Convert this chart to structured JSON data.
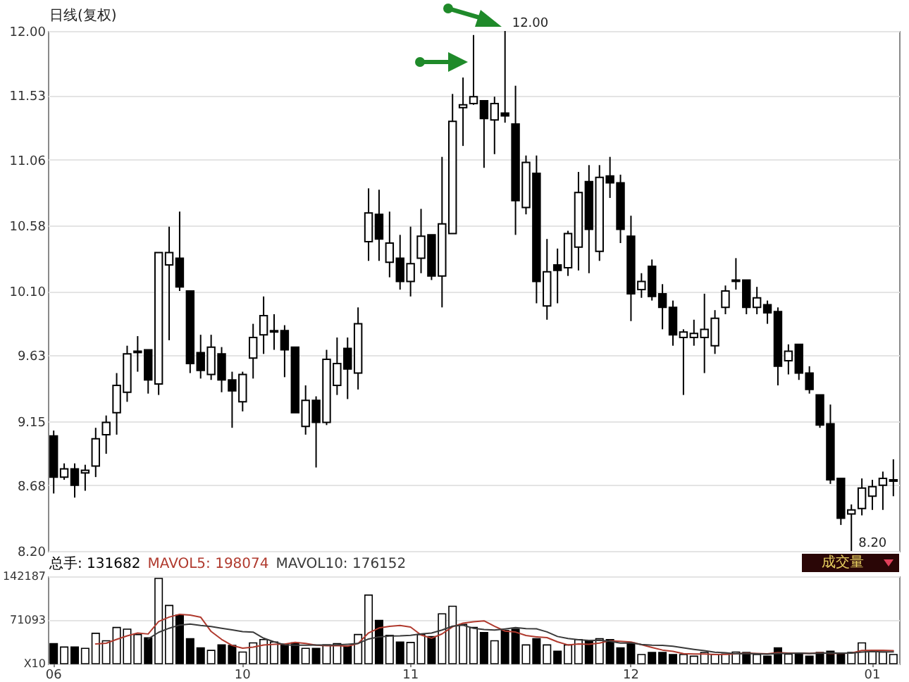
{
  "chart_data": [
    {
      "type": "candlestick",
      "title": "日线(复权)",
      "color": "#000000",
      "categories": [
        "06",
        null,
        null,
        null,
        null,
        null,
        null,
        null,
        null,
        null,
        null,
        null,
        null,
        null,
        null,
        null,
        null,
        null,
        "10",
        null,
        null,
        null,
        null,
        null,
        null,
        null,
        null,
        null,
        null,
        null,
        null,
        null,
        null,
        null,
        "11",
        null,
        null,
        null,
        null,
        null,
        null,
        null,
        null,
        null,
        null,
        null,
        null,
        null,
        null,
        null,
        null,
        null,
        null,
        null,
        null,
        "12",
        null,
        null,
        null,
        null,
        null,
        null,
        null,
        null,
        null,
        null,
        null,
        null,
        null,
        null,
        null,
        null,
        null,
        null,
        null,
        null,
        null,
        null,
        "01",
        null,
        null
      ],
      "ohlc": [
        [
          9.04,
          9.08,
          8.62,
          8.74
        ],
        [
          8.74,
          8.84,
          8.72,
          8.8
        ],
        [
          8.8,
          8.84,
          8.59,
          8.68
        ],
        [
          8.77,
          8.83,
          8.64,
          8.79
        ],
        [
          8.82,
          9.1,
          8.74,
          9.02
        ],
        [
          9.05,
          9.19,
          8.91,
          9.14
        ],
        [
          9.21,
          9.5,
          9.05,
          9.41
        ],
        [
          9.36,
          9.7,
          9.29,
          9.64
        ],
        [
          9.65,
          9.77,
          9.51,
          9.66
        ],
        [
          9.67,
          9.67,
          9.35,
          9.45
        ],
        [
          9.42,
          10.38,
          9.34,
          10.38
        ],
        [
          10.29,
          10.57,
          9.74,
          10.38
        ],
        [
          10.34,
          10.68,
          10.1,
          10.13
        ],
        [
          10.1,
          10.1,
          9.5,
          9.57
        ],
        [
          9.65,
          9.78,
          9.46,
          9.52
        ],
        [
          9.49,
          9.78,
          9.45,
          9.69
        ],
        [
          9.64,
          9.69,
          9.36,
          9.45
        ],
        [
          9.45,
          9.51,
          9.1,
          9.37
        ],
        [
          9.29,
          9.51,
          9.22,
          9.49
        ],
        [
          9.61,
          9.86,
          9.46,
          9.76
        ],
        [
          9.78,
          10.06,
          9.64,
          9.92
        ],
        [
          9.8,
          9.93,
          9.67,
          9.81
        ],
        [
          9.81,
          9.85,
          9.47,
          9.67
        ],
        [
          9.69,
          9.69,
          9.21,
          9.21
        ],
        [
          9.11,
          9.41,
          9.05,
          9.3
        ],
        [
          9.3,
          9.33,
          8.81,
          9.14
        ],
        [
          9.14,
          9.67,
          9.12,
          9.6
        ],
        [
          9.41,
          9.76,
          9.34,
          9.57
        ],
        [
          9.68,
          9.76,
          9.31,
          9.53
        ],
        [
          9.5,
          9.98,
          9.38,
          9.86
        ],
        [
          10.46,
          10.85,
          10.32,
          10.67
        ],
        [
          10.66,
          10.84,
          10.32,
          10.48
        ],
        [
          10.31,
          10.68,
          10.2,
          10.45
        ],
        [
          10.34,
          10.51,
          10.11,
          10.17
        ],
        [
          10.17,
          10.57,
          10.06,
          10.3
        ],
        [
          10.34,
          10.7,
          10.23,
          10.5
        ],
        [
          10.51,
          10.51,
          10.18,
          10.21
        ],
        [
          10.21,
          11.08,
          9.98,
          10.59
        ],
        [
          10.52,
          11.54,
          10.52,
          11.34
        ],
        [
          11.44,
          11.66,
          11.16,
          11.46
        ],
        [
          11.47,
          11.97,
          11.46,
          11.52
        ],
        [
          11.49,
          11.49,
          11.0,
          11.36
        ],
        [
          11.35,
          11.52,
          11.1,
          11.47
        ],
        [
          11.4,
          12.0,
          11.33,
          11.38
        ],
        [
          11.32,
          11.6,
          10.51,
          10.76
        ],
        [
          10.71,
          11.09,
          10.66,
          11.04
        ],
        [
          10.96,
          11.09,
          10.01,
          10.17
        ],
        [
          9.99,
          10.48,
          9.89,
          10.24
        ],
        [
          10.29,
          10.41,
          10.01,
          10.25
        ],
        [
          10.27,
          10.54,
          10.21,
          10.52
        ],
        [
          10.42,
          10.97,
          10.25,
          10.82
        ],
        [
          10.9,
          11.02,
          10.23,
          10.55
        ],
        [
          10.39,
          11.02,
          10.32,
          10.93
        ],
        [
          10.94,
          11.08,
          10.78,
          10.89
        ],
        [
          10.89,
          10.95,
          10.45,
          10.55
        ],
        [
          10.5,
          10.65,
          9.88,
          10.08
        ],
        [
          10.11,
          10.23,
          10.05,
          10.17
        ],
        [
          10.28,
          10.33,
          10.03,
          10.06
        ],
        [
          10.08,
          10.15,
          9.82,
          9.98
        ],
        [
          9.98,
          10.03,
          9.7,
          9.78
        ],
        [
          9.76,
          9.82,
          9.34,
          9.8
        ],
        [
          9.76,
          9.89,
          9.7,
          9.79
        ],
        [
          9.76,
          10.08,
          9.5,
          9.82
        ],
        [
          9.7,
          9.96,
          9.64,
          9.9
        ],
        [
          9.98,
          10.14,
          9.93,
          10.1
        ],
        [
          10.17,
          10.34,
          10.11,
          10.18
        ],
        [
          10.18,
          10.18,
          9.93,
          9.98
        ],
        [
          9.98,
          10.13,
          9.93,
          10.05
        ],
        [
          10.0,
          10.03,
          9.86,
          9.94
        ],
        [
          9.95,
          9.98,
          9.41,
          9.55
        ],
        [
          9.59,
          9.71,
          9.49,
          9.66
        ],
        [
          9.71,
          9.71,
          9.45,
          9.5
        ],
        [
          9.5,
          9.55,
          9.35,
          9.38
        ],
        [
          9.34,
          9.34,
          9.1,
          9.12
        ],
        [
          9.13,
          9.27,
          8.69,
          8.72
        ],
        [
          8.73,
          8.73,
          8.39,
          8.44
        ],
        [
          8.47,
          8.54,
          8.2,
          8.5
        ],
        [
          8.51,
          8.73,
          8.46,
          8.66
        ],
        [
          8.6,
          8.72,
          8.5,
          8.67
        ],
        [
          8.68,
          8.78,
          8.5,
          8.73
        ],
        [
          8.71,
          8.87,
          8.6,
          8.72
        ]
      ],
      "ylim": [
        8.2,
        12.0
      ],
      "yticks": [
        {
          "value": 8.2,
          "label": "8.20"
        },
        8.68,
        9.15,
        9.63,
        {
          "value": 10.1,
          "label": "10.10"
        },
        10.58,
        11.06,
        11.53,
        {
          "value": 12.0,
          "label": "12.00"
        }
      ],
      "grid": "y",
      "tick_labels": "y",
      "annotations": [
        "12.00",
        "8.20"
      ]
    },
    {
      "type": "bar",
      "categories": [
        "06",
        null,
        null,
        null,
        null,
        null,
        null,
        null,
        null,
        null,
        null,
        null,
        null,
        null,
        null,
        null,
        null,
        null,
        "10",
        null,
        null,
        null,
        null,
        null,
        null,
        null,
        null,
        null,
        null,
        null,
        null,
        null,
        null,
        null,
        "11",
        null,
        null,
        null,
        null,
        null,
        null,
        null,
        null,
        null,
        null,
        null,
        null,
        null,
        null,
        null,
        null,
        null,
        null,
        null,
        null,
        "12",
        null,
        null,
        null,
        null,
        null,
        null,
        null,
        null,
        null,
        null,
        null,
        null,
        null,
        null,
        null,
        null,
        null,
        null,
        null,
        null,
        null,
        null,
        "01",
        null,
        null
      ],
      "series": [
        {
          "type": "bar",
          "values": [
            32500,
            27100,
            27100,
            25000,
            49400,
            37200,
            58900,
            56200,
            47400,
            42000,
            138800,
            94800,
            79200,
            40600,
            25700,
            21700,
            30500,
            29800,
            19000,
            33900,
            39300,
            35200,
            31800,
            33900,
            25000,
            25000,
            30500,
            32500,
            28400,
            47400,
            111700,
            70400,
            46000,
            35200,
            34500,
            47400,
            44000,
            81200,
            93400,
            64000,
            58900,
            50800,
            37200,
            54200,
            56200,
            30500,
            40600,
            30500,
            20300,
            30500,
            39300,
            37200,
            40600,
            39300,
            25700,
            33900,
            14900,
            18300,
            18300,
            14900,
            14900,
            12200,
            18300,
            14900,
            15600,
            19000,
            18300,
            14900,
            12200,
            25700,
            15600,
            16900,
            12200,
            18300,
            20300,
            16900,
            18300,
            33900,
            20300,
            19000,
            14900
          ],
          "colors": [
            "#000000",
            "#ffffff",
            "#000000",
            "#ffffff",
            "#ffffff",
            "#ffffff",
            "#ffffff",
            "#ffffff",
            "#ffffff",
            "#000000",
            "#ffffff",
            "#ffffff",
            "#000000",
            "#000000",
            "#000000",
            "#ffffff",
            "#000000",
            "#000000",
            "#ffffff",
            "#ffffff",
            "#ffffff",
            "#ffffff",
            "#000000",
            "#000000",
            "#ffffff",
            "#000000",
            "#ffffff",
            "#ffffff",
            "#000000",
            "#ffffff",
            "#ffffff",
            "#000000",
            "#ffffff",
            "#000000",
            "#ffffff",
            "#ffffff",
            "#000000",
            "#ffffff",
            "#ffffff",
            "#ffffff",
            "#ffffff",
            "#000000",
            "#ffffff",
            "#000000",
            "#000000",
            "#ffffff",
            "#000000",
            "#ffffff",
            "#000000",
            "#ffffff",
            "#ffffff",
            "#000000",
            "#ffffff",
            "#000000",
            "#000000",
            "#000000",
            "#ffffff",
            "#000000",
            "#000000",
            "#000000",
            "#ffffff",
            "#ffffff",
            "#ffffff",
            "#ffffff",
            "#ffffff",
            "#ffffff",
            "#000000",
            "#ffffff",
            "#000000",
            "#000000",
            "#ffffff",
            "#000000",
            "#000000",
            "#000000",
            "#000000",
            "#000000",
            "#ffffff",
            "#ffffff",
            "#ffffff",
            "#ffffff",
            "#ffffff"
          ]
        },
        {
          "type": "line",
          "name": "MAVOL5: 198074",
          "color": "#b03a2e",
          "values": [
            null,
            null,
            null,
            null,
            32200,
            33200,
            39500,
            45300,
            49800,
            48300,
            68700,
            75800,
            80400,
            79100,
            75800,
            52400,
            39500,
            29700,
            25300,
            27000,
            30500,
            31400,
            31800,
            34800,
            33000,
            30200,
            29200,
            29400,
            28300,
            32800,
            50100,
            58100,
            60800,
            62100,
            59600,
            46700,
            41400,
            48500,
            60100,
            66000,
            68300,
            69700,
            60900,
            53000,
            51500,
            45800,
            43700,
            42400,
            35600,
            30500,
            32200,
            31600,
            33600,
            37400,
            36400,
            35300,
            30900,
            26400,
            22200,
            20100,
            16300,
            15700,
            15700,
            15000,
            15200,
            16000,
            17200,
            16500,
            16000,
            18000,
            17300,
            17100,
            16500,
            17700,
            16700,
            16900,
            17200,
            21500,
            21900,
            21700,
            21300
          ]
        },
        {
          "type": "line",
          "name": "MAVOL10: 176152",
          "color": "#3a3a3a",
          "values": [
            null,
            null,
            null,
            null,
            null,
            null,
            null,
            null,
            null,
            40300,
            51000,
            57700,
            62900,
            64500,
            62100,
            60600,
            57700,
            55100,
            52200,
            51400,
            41500,
            35500,
            30800,
            30100,
            30000,
            30400,
            30300,
            30600,
            31600,
            32900,
            40200,
            43700,
            45100,
            45200,
            46200,
            48400,
            49800,
            54700,
            61100,
            62800,
            57500,
            55600,
            54700,
            56600,
            58800,
            57100,
            56700,
            51700,
            44300,
            41000,
            39000,
            37700,
            38000,
            36500,
            33500,
            33800,
            31300,
            30000,
            29800,
            28300,
            25800,
            23300,
            21100,
            18600,
            17700,
            16200,
            16500,
            16100,
            15500,
            16600,
            16700,
            17200,
            16500,
            16900,
            17400,
            17100,
            17200,
            19000,
            19800,
            19200,
            19100
          ]
        }
      ],
      "ylim": [
        0,
        142187
      ],
      "yticks": [
        {
          "value": 0,
          "label": "X10"
        },
        71093,
        142187
      ],
      "grid": "y",
      "annotations": [
        "总手: 131682",
        "成交量"
      ]
    }
  ]
}
